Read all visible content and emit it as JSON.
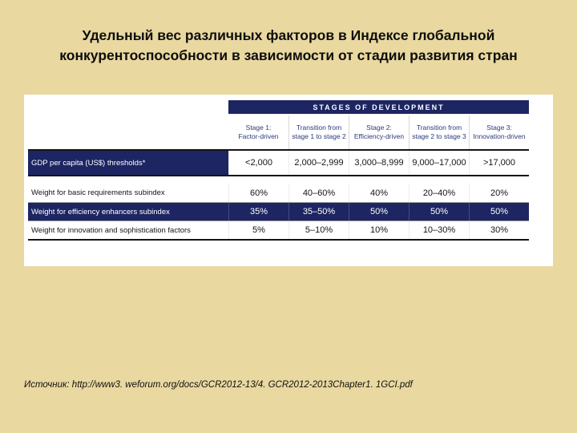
{
  "slide": {
    "title": "Удельный вес различных факторов в Индексе глобальной конкурентоспособности в зависимости от стадии развития стран",
    "source": "Источник: http://www3. weforum.org/docs/GCR2012-13/4. GCR2012-2013Chapter1. 1GCI.pdf"
  },
  "table": {
    "banner": "STAGES OF DEVELOPMENT",
    "columns": [
      {
        "line1": "Stage 1:",
        "line2": "Factor-driven"
      },
      {
        "line1": "Transition from",
        "line2": "stage 1 to stage 2"
      },
      {
        "line1": "Stage 2:",
        "line2": "Efficiency-driven"
      },
      {
        "line1": "Transition from",
        "line2": "stage 2 to stage 3"
      },
      {
        "line1": "Stage 3:",
        "line2": "Innovation-driven"
      }
    ],
    "rows": [
      {
        "label": "GDP per capita (US$) thresholds*",
        "values": [
          "<2,000",
          "2,000–2,999",
          "3,000–8,999",
          "9,000–17,000",
          ">17,000"
        ]
      },
      {
        "label": "Weight for basic requirements subindex",
        "values": [
          "60%",
          "40–60%",
          "40%",
          "20–40%",
          "20%"
        ]
      },
      {
        "label": "Weight for efficiency enhancers subindex",
        "values": [
          "35%",
          "35–50%",
          "50%",
          "50%",
          "50%"
        ]
      },
      {
        "label": "Weight for innovation and sophistication factors",
        "values": [
          "5%",
          "5–10%",
          "10%",
          "10–30%",
          "30%"
        ]
      }
    ]
  },
  "colors": {
    "slide_background": "#e9d8a0",
    "panel_background": "#ffffff",
    "navy": "#1d2563",
    "header_text": "#2b3a7d"
  }
}
